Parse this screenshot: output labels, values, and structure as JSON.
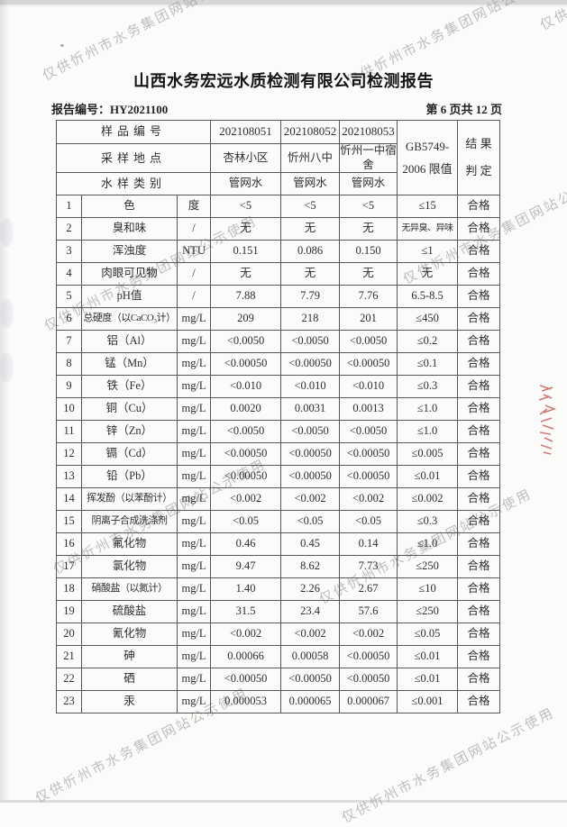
{
  "page": {
    "title": "山西水务宏远水质检测有限公司检测报告",
    "report_no": "报告编号：HY2021100",
    "page_indicator": "第 6 页共 12 页"
  },
  "watermark": {
    "text": "仅供忻州市水务集团网站公示使用",
    "color": "#8e8e8c"
  },
  "artifacts": {
    "red_stamp_color": "#b43430"
  },
  "table": {
    "header": {
      "sample_no_label": "样品编号",
      "sample_site_label": "采样地点",
      "sample_type_label": "水样类别",
      "sample_nos": [
        "202108051",
        "202108052",
        "202108053"
      ],
      "sample_sites": [
        "杏林小区",
        "忻州八中",
        "忻州一中宿舍"
      ],
      "sample_types": [
        "管网水",
        "管网水",
        "管网水"
      ],
      "limit_line1": "GB5749-",
      "limit_line2": "2006 限值",
      "result_line1": "结 果",
      "result_line2": "判 定"
    },
    "rows": [
      {
        "no": "1",
        "name": "色",
        "unit": "度",
        "v1": "<5",
        "v2": "<5",
        "v3": "<5",
        "limit": "≤15",
        "result": "合格"
      },
      {
        "no": "2",
        "name": "臭和味",
        "unit": "/",
        "v1": "无",
        "v2": "无",
        "v3": "无",
        "limit": "无异臭、异味",
        "result": "合格"
      },
      {
        "no": "3",
        "name": "浑浊度",
        "unit": "NTU",
        "v1": "0.151",
        "v2": "0.086",
        "v3": "0.150",
        "limit": "≤1",
        "result": "合格"
      },
      {
        "no": "4",
        "name": "肉眼可见物",
        "unit": "/",
        "v1": "无",
        "v2": "无",
        "v3": "无",
        "limit": "无",
        "result": "合格"
      },
      {
        "no": "5",
        "name": "pH值",
        "unit": "/",
        "v1": "7.88",
        "v2": "7.79",
        "v3": "7.76",
        "limit": "6.5-8.5",
        "result": "合格"
      },
      {
        "no": "6",
        "name": "总硬度（以CaCO₃计）",
        "unit": "mg/L",
        "v1": "209",
        "v2": "218",
        "v3": "201",
        "limit": "≤450",
        "result": "合格"
      },
      {
        "no": "7",
        "name": "铝（Al）",
        "unit": "mg/L",
        "v1": "<0.0050",
        "v2": "<0.0050",
        "v3": "<0.0050",
        "limit": "≤0.2",
        "result": "合格"
      },
      {
        "no": "8",
        "name": "锰（Mn）",
        "unit": "mg/L",
        "v1": "<0.00050",
        "v2": "<0.00050",
        "v3": "<0.00050",
        "limit": "≤0.1",
        "result": "合格"
      },
      {
        "no": "9",
        "name": "铁（Fe）",
        "unit": "mg/L",
        "v1": "<0.010",
        "v2": "<0.010",
        "v3": "<0.010",
        "limit": "≤0.3",
        "result": "合格"
      },
      {
        "no": "10",
        "name": "铜（Cu）",
        "unit": "mg/L",
        "v1": "0.0020",
        "v2": "0.0031",
        "v3": "0.0013",
        "limit": "≤1.0",
        "result": "合格"
      },
      {
        "no": "11",
        "name": "锌（Zn）",
        "unit": "mg/L",
        "v1": "<0.0050",
        "v2": "<0.0050",
        "v3": "<0.0050",
        "limit": "≤1.0",
        "result": "合格"
      },
      {
        "no": "12",
        "name": "镉（Cd）",
        "unit": "mg/L",
        "v1": "<0.00050",
        "v2": "<0.00050",
        "v3": "<0.00050",
        "limit": "≤0.005",
        "result": "合格"
      },
      {
        "no": "13",
        "name": "铅（Pb）",
        "unit": "mg/L",
        "v1": "<0.00050",
        "v2": "<0.00050",
        "v3": "<0.00050",
        "limit": "≤0.01",
        "result": "合格"
      },
      {
        "no": "14",
        "name": "挥发酚（以苯酚计）",
        "unit": "mg/L",
        "v1": "<0.002",
        "v2": "<0.002",
        "v3": "<0.002",
        "limit": "≤0.002",
        "result": "合格"
      },
      {
        "no": "15",
        "name": "阴离子合成洗涤剂",
        "unit": "mg/L",
        "v1": "<0.05",
        "v2": "<0.05",
        "v3": "<0.05",
        "limit": "≤0.3",
        "result": "合格"
      },
      {
        "no": "16",
        "name": "氟化物",
        "unit": "mg/L",
        "v1": "0.46",
        "v2": "0.45",
        "v3": "0.14",
        "limit": "≤1.0",
        "result": "合格"
      },
      {
        "no": "17",
        "name": "氯化物",
        "unit": "mg/L",
        "v1": "9.47",
        "v2": "8.62",
        "v3": "7.73",
        "limit": "≤250",
        "result": "合格"
      },
      {
        "no": "18",
        "name": "硝酸盐（以氮计）",
        "unit": "mg/L",
        "v1": "1.40",
        "v2": "2.26",
        "v3": "2.67",
        "limit": "≤10",
        "result": "合格"
      },
      {
        "no": "19",
        "name": "硫酸盐",
        "unit": "mg/L",
        "v1": "31.5",
        "v2": "23.4",
        "v3": "57.6",
        "limit": "≤250",
        "result": "合格"
      },
      {
        "no": "20",
        "name": "氰化物",
        "unit": "mg/L",
        "v1": "<0.002",
        "v2": "<0.002",
        "v3": "<0.002",
        "limit": "≤0.05",
        "result": "合格"
      },
      {
        "no": "21",
        "name": "砷",
        "unit": "mg/L",
        "v1": "0.00066",
        "v2": "0.00058",
        "v3": "<0.00050",
        "limit": "≤0.01",
        "result": "合格"
      },
      {
        "no": "22",
        "name": "硒",
        "unit": "mg/L",
        "v1": "<0.00050",
        "v2": "<0.00050",
        "v3": "<0.00050",
        "limit": "≤0.01",
        "result": "合格"
      },
      {
        "no": "23",
        "name": "汞",
        "unit": "mg/L",
        "v1": "0.000053",
        "v2": "0.000065",
        "v3": "0.000067",
        "limit": "≤0.001",
        "result": "合格"
      }
    ]
  }
}
